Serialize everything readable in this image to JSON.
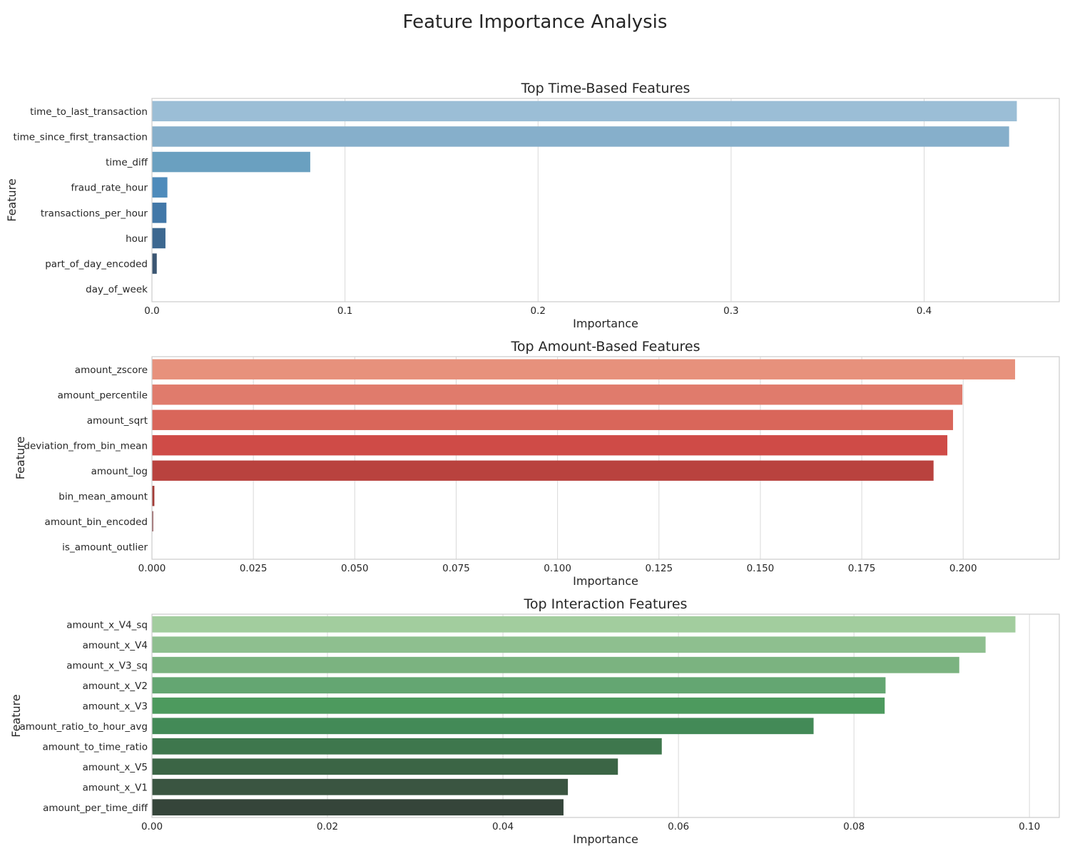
{
  "figure": {
    "title": "Feature Importance Analysis"
  },
  "chart_data": [
    {
      "type": "bar",
      "orientation": "horizontal",
      "title": "Top Time-Based Features",
      "xlabel": "Importance",
      "ylabel": "Feature",
      "grid": true,
      "xlim": [
        0,
        0.47
      ],
      "xticks": [
        0.0,
        0.1,
        0.2,
        0.3,
        0.4
      ],
      "xtick_labels": [
        "0.0",
        "0.1",
        "0.2",
        "0.3",
        "0.4"
      ],
      "categories": [
        "time_to_last_transaction",
        "time_since_first_transaction",
        "time_diff",
        "fraud_rate_hour",
        "transactions_per_hour",
        "hour",
        "part_of_day_encoded",
        "day_of_week"
      ],
      "values": [
        0.448,
        0.444,
        0.082,
        0.008,
        0.0075,
        0.007,
        0.0025,
        0.0
      ],
      "colors": [
        "#9bbed6",
        "#86afcb",
        "#6aa0c0",
        "#4e8bbb",
        "#4278a8",
        "#3d6890",
        "#3b5672",
        "#3f4550"
      ]
    },
    {
      "type": "bar",
      "orientation": "horizontal",
      "title": "Top Amount-Based Features",
      "xlabel": "Importance",
      "ylabel": "Feature",
      "grid": true,
      "xlim": [
        0,
        0.2237
      ],
      "xticks": [
        0.0,
        0.025,
        0.05,
        0.075,
        0.1,
        0.125,
        0.15,
        0.175,
        0.2
      ],
      "xtick_labels": [
        "0.000",
        "0.025",
        "0.050",
        "0.075",
        "0.100",
        "0.125",
        "0.150",
        "0.175",
        "0.200"
      ],
      "categories": [
        "amount_zscore",
        "amount_percentile",
        "amount_sqrt",
        "deviation_from_bin_mean",
        "amount_log",
        "bin_mean_amount",
        "amount_bin_encoded",
        "is_amount_outlier"
      ],
      "values": [
        0.2128,
        0.1998,
        0.1975,
        0.1961,
        0.1927,
        0.0006,
        0.0003,
        0.0
      ],
      "colors": [
        "#e7917c",
        "#e07b6c",
        "#d9665a",
        "#cf4b47",
        "#b9423e",
        "#a23a36",
        "#7a3135",
        "#5a2a30"
      ]
    },
    {
      "type": "bar",
      "orientation": "horizontal",
      "title": "Top Interaction Features",
      "xlabel": "Importance",
      "ylabel": "Feature",
      "grid": true,
      "xlim": [
        0,
        0.1034
      ],
      "xticks": [
        0.0,
        0.02,
        0.04,
        0.06,
        0.08,
        0.1
      ],
      "xtick_labels": [
        "0.00",
        "0.02",
        "0.04",
        "0.06",
        "0.08",
        "0.10"
      ],
      "categories": [
        "amount_x_V4_sq",
        "amount_x_V4",
        "amount_x_V3_sq",
        "amount_x_V2",
        "amount_x_V3",
        "amount_ratio_to_hour_avg",
        "amount_to_time_ratio",
        "amount_x_V5",
        "amount_x_V1",
        "amount_per_time_diff"
      ],
      "values": [
        0.0984,
        0.095,
        0.092,
        0.0836,
        0.0835,
        0.0754,
        0.0581,
        0.0531,
        0.0474,
        0.0469
      ],
      "colors": [
        "#a2cd9e",
        "#8ebf8f",
        "#7bb380",
        "#64a672",
        "#4d9a5e",
        "#438a57",
        "#3e774d",
        "#3b6545",
        "#3a5541",
        "#35453a"
      ]
    }
  ]
}
